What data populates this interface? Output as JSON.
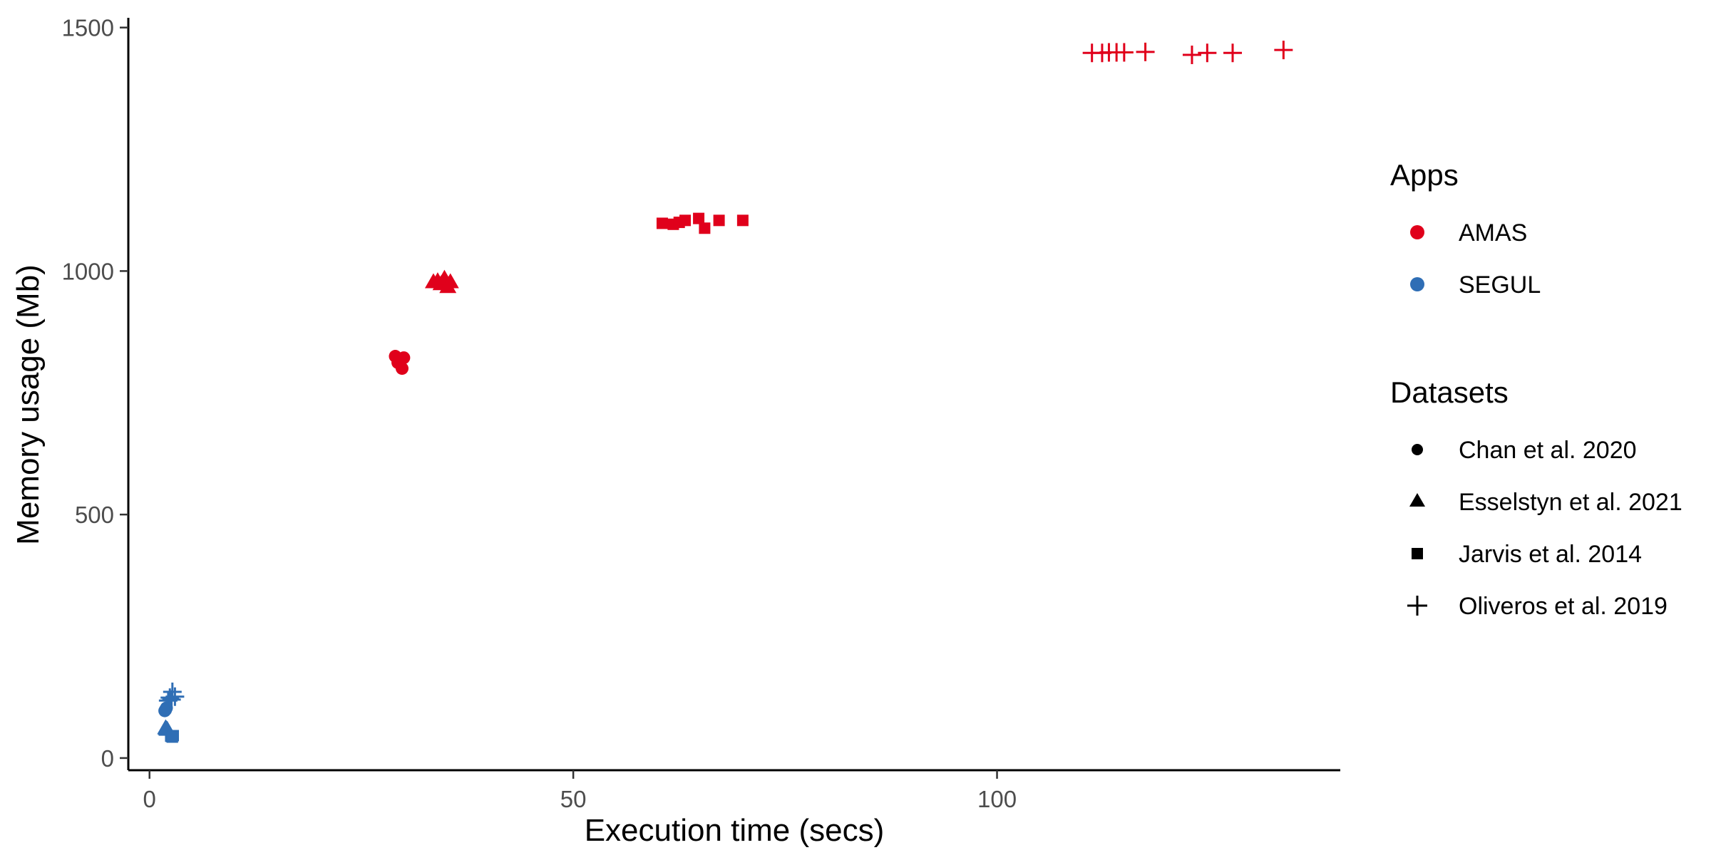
{
  "chart_data": {
    "type": "scatter",
    "xlabel": "Execution time (secs)",
    "ylabel": "Memory usage (Mb)",
    "xlim": [
      -2.5,
      140.5
    ],
    "ylim": [
      -25,
      1520
    ],
    "x_ticks": [
      0,
      50,
      100
    ],
    "y_ticks": [
      0,
      500,
      1000,
      1500
    ],
    "grid": false,
    "legend_position": "right",
    "colors": {
      "AMAS": "#e0001b",
      "SEGUL": "#2f6eb5"
    },
    "legends": {
      "apps": {
        "title": "Apps",
        "items": [
          {
            "label": "AMAS",
            "color": "#e0001b"
          },
          {
            "label": "SEGUL",
            "color": "#2f6eb5"
          }
        ]
      },
      "datasets": {
        "title": "Datasets",
        "items": [
          {
            "label": "Chan et al. 2020",
            "shape": "circle"
          },
          {
            "label": "Esselstyn et al. 2021",
            "shape": "triangle"
          },
          {
            "label": "Jarvis et al. 2014",
            "shape": "square"
          },
          {
            "label": "Oliveros et al. 2019",
            "shape": "plus"
          }
        ]
      }
    },
    "series": [
      {
        "app": "SEGUL",
        "dataset": "Chan et al. 2020",
        "shape": "circle",
        "points": [
          [
            1.8,
            97
          ],
          [
            1.9,
            100
          ],
          [
            2.0,
            103
          ],
          [
            1.9,
            99
          ]
        ]
      },
      {
        "app": "SEGUL",
        "dataset": "Esselstyn et al. 2021",
        "shape": "triangle",
        "points": [
          [
            1.9,
            62
          ],
          [
            2.0,
            60
          ],
          [
            2.1,
            59
          ]
        ]
      },
      {
        "app": "SEGUL",
        "dataset": "Jarvis et al. 2014",
        "shape": "square",
        "points": [
          [
            2.5,
            45
          ],
          [
            2.6,
            44
          ],
          [
            2.8,
            46
          ],
          [
            2.7,
            43
          ]
        ]
      },
      {
        "app": "SEGUL",
        "dataset": "Oliveros et al. 2019",
        "shape": "plus",
        "points": [
          [
            2.2,
            118
          ],
          [
            2.4,
            124
          ],
          [
            2.6,
            120
          ],
          [
            2.7,
            136
          ],
          [
            3.0,
            126
          ]
        ]
      },
      {
        "app": "AMAS",
        "dataset": "Chan et al. 2020",
        "shape": "circle",
        "points": [
          [
            29.0,
            825
          ],
          [
            29.3,
            812
          ],
          [
            29.6,
            818
          ],
          [
            29.8,
            800
          ],
          [
            30.0,
            822
          ]
        ]
      },
      {
        "app": "AMAS",
        "dataset": "Esselstyn et al. 2021",
        "shape": "triangle",
        "points": [
          [
            33.5,
            978
          ],
          [
            34.0,
            980
          ],
          [
            34.4,
            974
          ],
          [
            34.8,
            985
          ],
          [
            35.2,
            968
          ],
          [
            35.5,
            978
          ]
        ]
      },
      {
        "app": "AMAS",
        "dataset": "Jarvis et al. 2014",
        "shape": "square",
        "points": [
          [
            60.5,
            1098
          ],
          [
            61.8,
            1096
          ],
          [
            62.5,
            1100
          ],
          [
            63.2,
            1104
          ],
          [
            64.8,
            1108
          ],
          [
            65.5,
            1088
          ],
          [
            67.2,
            1104
          ],
          [
            70.0,
            1104
          ]
        ]
      },
      {
        "app": "AMAS",
        "dataset": "Oliveros et al. 2019",
        "shape": "plus",
        "points": [
          [
            111.2,
            1448
          ],
          [
            112.4,
            1448
          ],
          [
            113.2,
            1449
          ],
          [
            114.1,
            1449
          ],
          [
            115.0,
            1449
          ],
          [
            117.5,
            1450
          ],
          [
            123.0,
            1444
          ],
          [
            124.8,
            1448
          ],
          [
            127.8,
            1448
          ],
          [
            133.8,
            1454
          ]
        ]
      }
    ]
  }
}
